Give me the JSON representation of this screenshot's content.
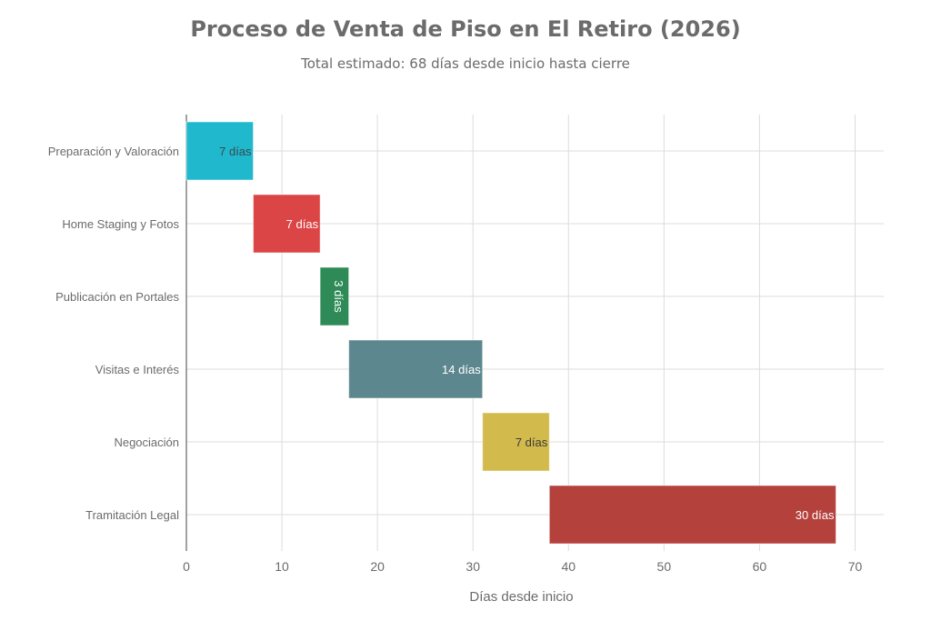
{
  "chart_data": {
    "type": "bar",
    "orientation": "horizontal-gantt",
    "title": "Proceso de Venta de Piso en El Retiro (2026)",
    "subtitle": "Total estimado: 68 días desde inicio hasta cierre",
    "xlabel": "Días desde inicio",
    "ylabel": "",
    "xlim": [
      0,
      73
    ],
    "xticks": [
      0,
      10,
      20,
      30,
      40,
      50,
      60,
      70
    ],
    "grid": true,
    "legend": "none",
    "tasks": [
      {
        "name": "Preparación y Valoración",
        "start": 0,
        "duration": 7,
        "label": "7 días",
        "color": "#1FB8CD",
        "label_color": "#3a4a4f"
      },
      {
        "name": "Home Staging y Fotos",
        "start": 7,
        "duration": 7,
        "label": "7 días",
        "color": "#DB4545",
        "label_color": "#ffffff"
      },
      {
        "name": "Publicación en Portales",
        "start": 14,
        "duration": 3,
        "label": "3 días",
        "color": "#2E8B57",
        "label_color": "#ffffff",
        "label_rotated": true
      },
      {
        "name": "Visitas e Interés",
        "start": 17,
        "duration": 14,
        "label": "14 días",
        "color": "#5D878F",
        "label_color": "#ffffff"
      },
      {
        "name": "Negociación",
        "start": 31,
        "duration": 7,
        "label": "7 días",
        "color": "#D2BA4C",
        "label_color": "#3a3a3a"
      },
      {
        "name": "Tramitación Legal",
        "start": 38,
        "duration": 30,
        "label": "30 días",
        "color": "#B4413C",
        "label_color": "#ffffff"
      }
    ]
  }
}
